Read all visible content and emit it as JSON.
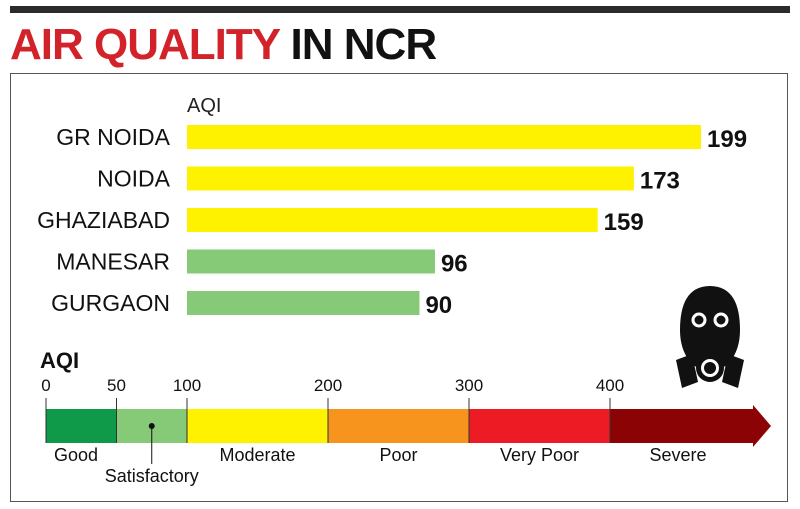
{
  "title": {
    "highlight": "AIR QUALITY",
    "rest": "IN NCR"
  },
  "chart_data": {
    "type": "bar",
    "orientation": "horizontal",
    "value_axis_label": "AQI",
    "categories": [
      "GR NOIDA",
      "NOIDA",
      "GHAZIABAD",
      "MANESAR",
      "GURGAON"
    ],
    "values": [
      199,
      173,
      159,
      96,
      90
    ],
    "value_labels": [
      "199",
      "173",
      "159",
      "96",
      "90"
    ],
    "bar_colors": [
      "#fff200",
      "#fff200",
      "#fff200",
      "#86c976",
      "#86c976"
    ]
  },
  "scale": {
    "label": "AQI",
    "ticks": [
      {
        "value": 0,
        "label": "0"
      },
      {
        "value": 50,
        "label": "50"
      },
      {
        "value": 100,
        "label": "100"
      },
      {
        "value": 200,
        "label": "200"
      },
      {
        "value": 300,
        "label": "300"
      },
      {
        "value": 400,
        "label": "400"
      }
    ],
    "bands": [
      {
        "from": 0,
        "to": 50,
        "label": "Good",
        "color": "#0e9a48"
      },
      {
        "from": 50,
        "to": 100,
        "label": "Satisfactory",
        "color": "#86c976"
      },
      {
        "from": 100,
        "to": 200,
        "label": "Moderate",
        "color": "#fff200"
      },
      {
        "from": 200,
        "to": 300,
        "label": "Poor",
        "color": "#f7941d"
      },
      {
        "from": 300,
        "to": 400,
        "label": "Very Poor",
        "color": "#ed1c24"
      },
      {
        "from": 400,
        "to": 500,
        "label": "Severe",
        "color": "#8b0304"
      }
    ]
  },
  "icons": {
    "mask": "gas-mask-icon"
  }
}
